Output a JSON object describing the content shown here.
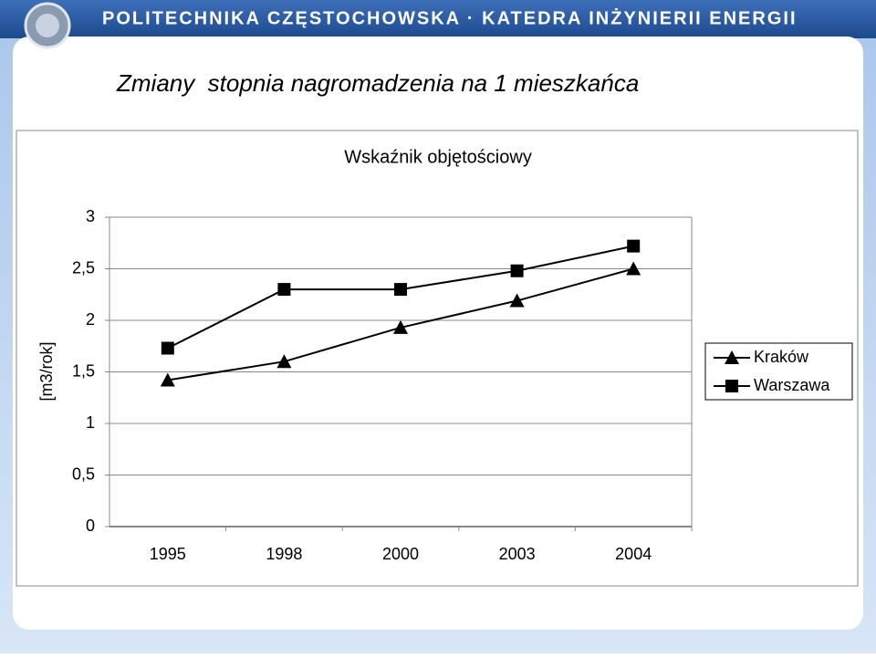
{
  "header": {
    "title": "POLITECHNIKA CZĘSTOCHOWSKA · KATEDRA INŻYNIERII ENERGII"
  },
  "slide": {
    "title": "Zmiany  stopnia nagromadzenia na 1 mieszkańca"
  },
  "chart_data": {
    "type": "line",
    "title": "Wskaźnik objętościowy",
    "y_label": "[m3/rok]",
    "categories": [
      "1995",
      "1998",
      "2000",
      "2003",
      "2004"
    ],
    "series": [
      {
        "name": "Kraków",
        "color": "#000000",
        "marker": "triangle",
        "values": [
          1.42,
          1.6,
          1.93,
          2.19,
          2.5
        ]
      },
      {
        "name": "Warszawa",
        "color": "#000000",
        "marker": "square",
        "values": [
          1.73,
          2.3,
          2.3,
          2.48,
          2.72
        ]
      }
    ],
    "ylim": [
      0,
      3
    ],
    "yticks": [
      0,
      {
        "value": 0.5,
        "label": "0,5"
      },
      1,
      {
        "value": 1.5,
        "label": "1,5"
      },
      2,
      {
        "value": 2.5,
        "label": "2,5"
      },
      3
    ],
    "grid": true,
    "legend": "right"
  }
}
